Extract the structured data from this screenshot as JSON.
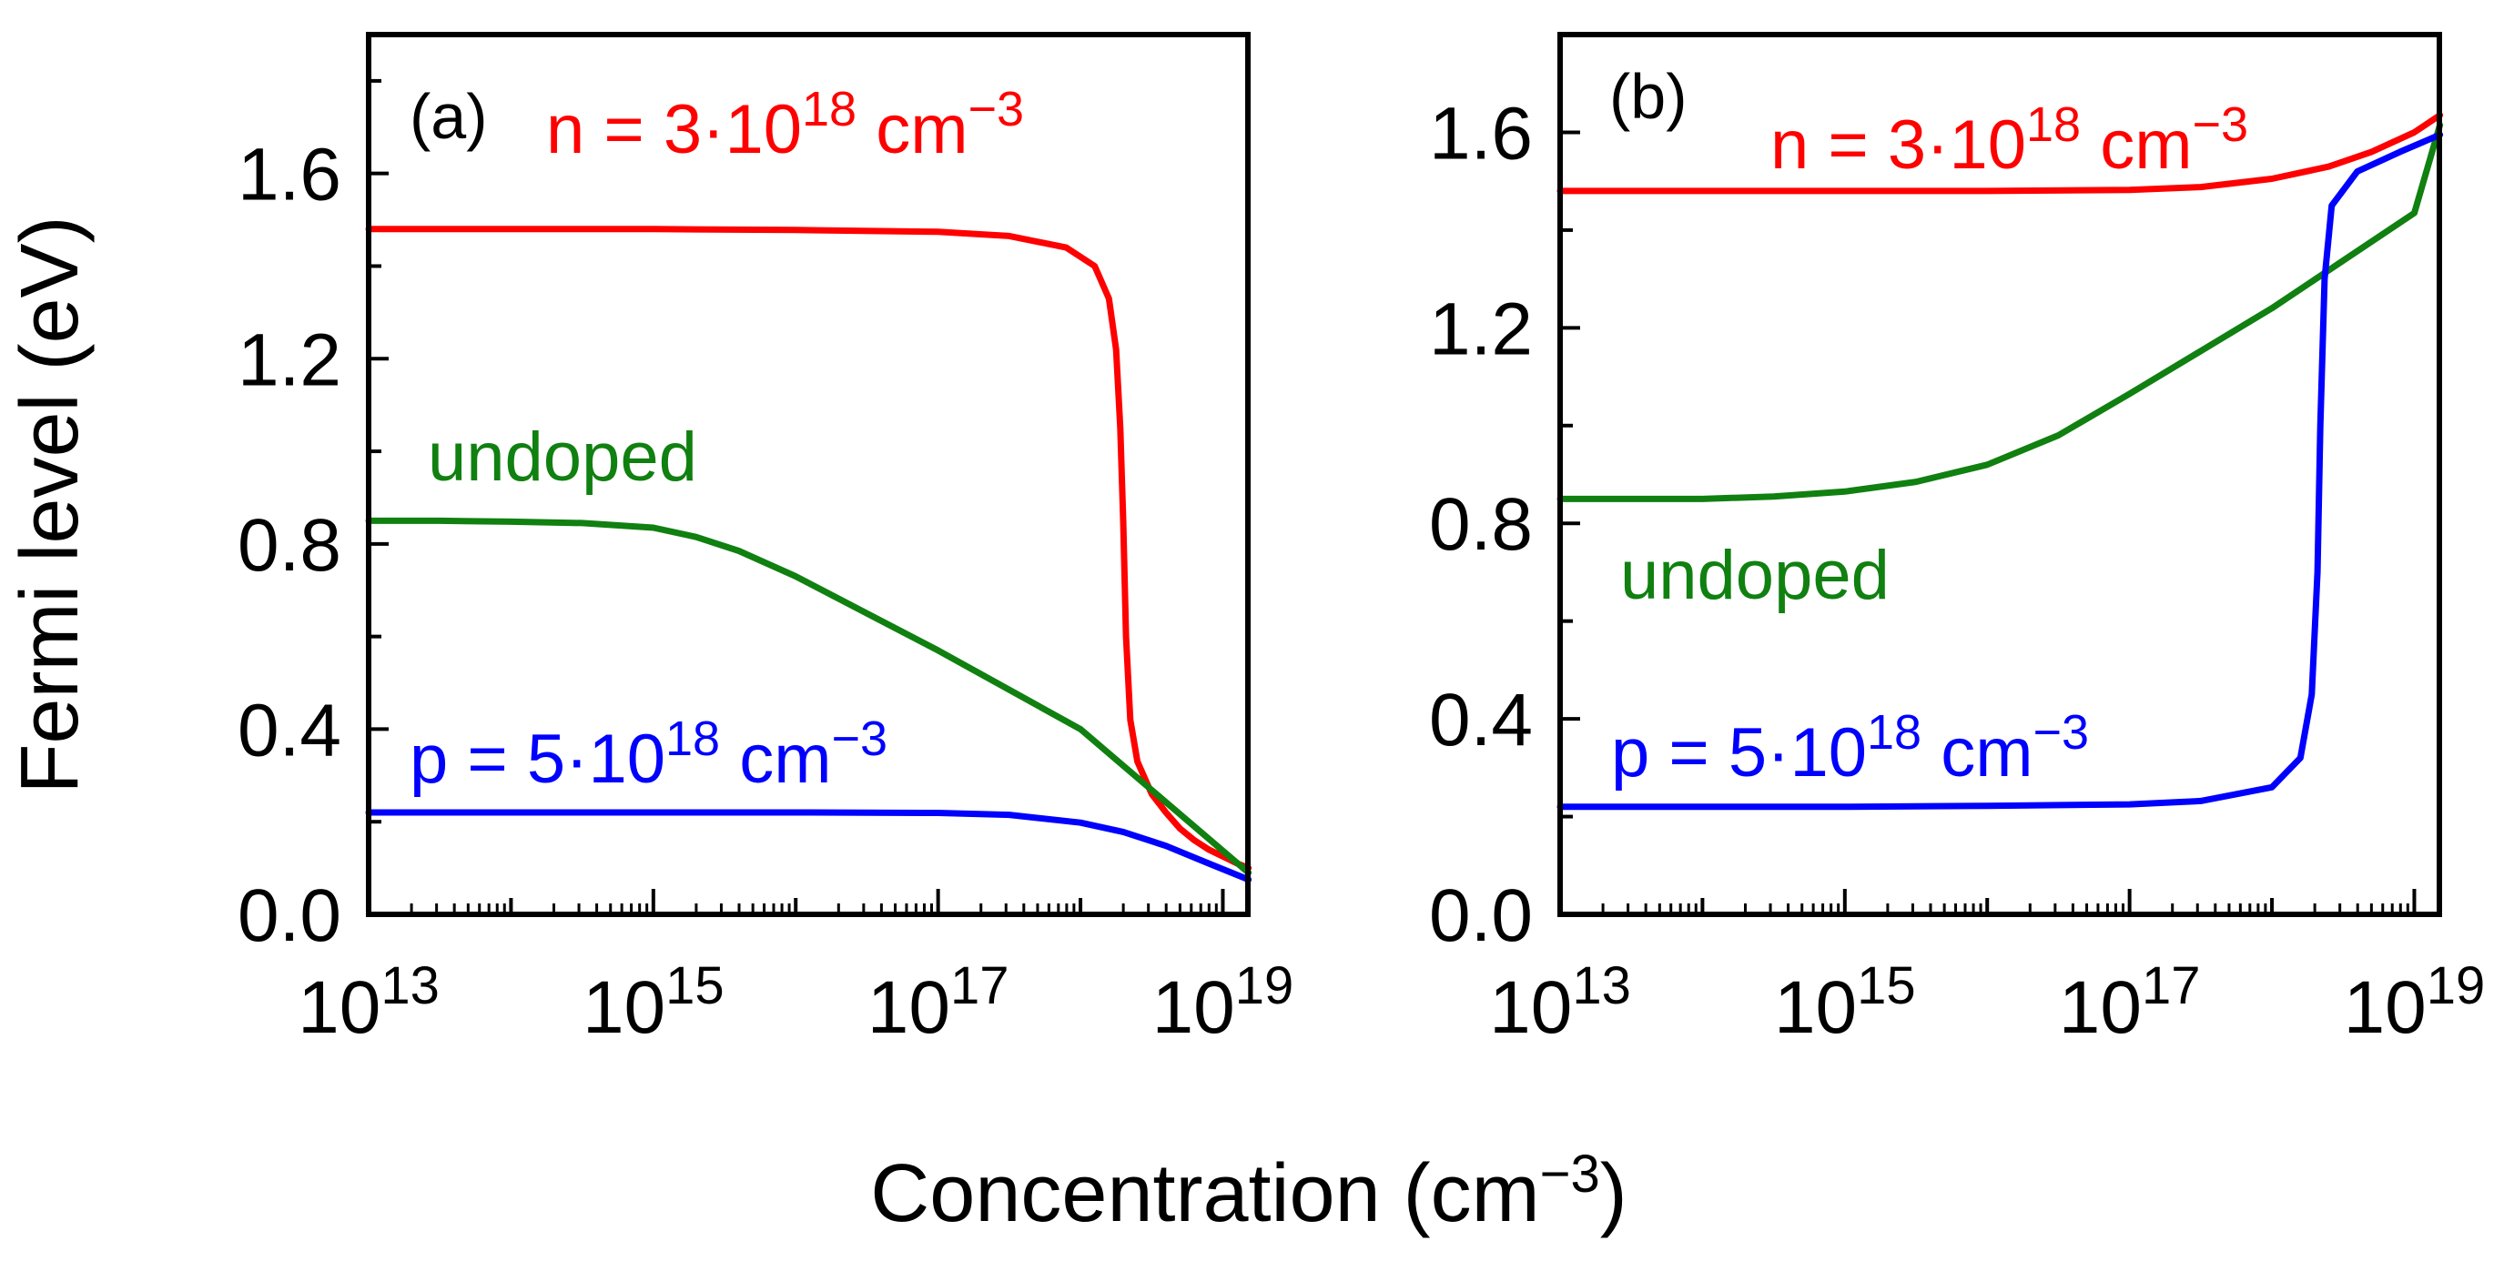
{
  "figure": {
    "ylabel": "Fermi level (eV)",
    "xlabel": "Concentration (cm",
    "xlabel_exp": "−3",
    "xlabel_close": ")"
  },
  "chart_data": [
    {
      "type": "line",
      "panel": "(a)",
      "xscale": "log",
      "xlim": [
        10000000000000.0,
        1.5e+19
      ],
      "ylim": [
        0,
        1.9
      ],
      "xticks": [
        {
          "base": "10",
          "exp": "13"
        },
        {
          "base": "10",
          "exp": "15"
        },
        {
          "base": "10",
          "exp": "17"
        },
        {
          "base": "10",
          "exp": "19"
        }
      ],
      "yticks": [
        "0.0",
        "0.4",
        "0.8",
        "1.2",
        "1.6"
      ],
      "series": [
        {
          "name": "n-doped",
          "color": "#ff0000",
          "label": {
            "pre": "n = 3·10",
            "exp": "18",
            "post": " cm",
            "unit_exp": "−3"
          },
          "points": [
            [
              13,
              1.48
            ],
            [
              14,
              1.48
            ],
            [
              15,
              1.48
            ],
            [
              16,
              1.478
            ],
            [
              17,
              1.474
            ],
            [
              17.5,
              1.465
            ],
            [
              17.9,
              1.44
            ],
            [
              18.1,
              1.4
            ],
            [
              18.2,
              1.33
            ],
            [
              18.25,
              1.22
            ],
            [
              18.28,
              1.05
            ],
            [
              18.3,
              0.85
            ],
            [
              18.32,
              0.6
            ],
            [
              18.35,
              0.42
            ],
            [
              18.4,
              0.33
            ],
            [
              18.5,
              0.26
            ],
            [
              18.6,
              0.22
            ],
            [
              18.7,
              0.185
            ],
            [
              18.8,
              0.16
            ],
            [
              18.9,
              0.14
            ],
            [
              19,
              0.125
            ],
            [
              19.1,
              0.11
            ],
            [
              19.18,
              0.1
            ]
          ]
        },
        {
          "name": "undoped",
          "color": "#108010",
          "label": {
            "pre": "undoped",
            "exp": "",
            "post": "",
            "unit_exp": ""
          },
          "points": [
            [
              13,
              0.85
            ],
            [
              13.5,
              0.85
            ],
            [
              14,
              0.848
            ],
            [
              14.5,
              0.845
            ],
            [
              15,
              0.835
            ],
            [
              15.3,
              0.815
            ],
            [
              15.6,
              0.785
            ],
            [
              16,
              0.73
            ],
            [
              17,
              0.57
            ],
            [
              18,
              0.4
            ],
            [
              19.18,
              0.09
            ]
          ]
        },
        {
          "name": "p-doped",
          "color": "#0000ff",
          "label": {
            "pre": "p = 5·10",
            "exp": "18",
            "post": " cm",
            "unit_exp": "−3"
          },
          "points": [
            [
              13,
              0.22
            ],
            [
              15,
              0.22
            ],
            [
              16,
              0.22
            ],
            [
              17,
              0.219
            ],
            [
              17.5,
              0.215
            ],
            [
              18,
              0.198
            ],
            [
              18.3,
              0.178
            ],
            [
              18.6,
              0.148
            ],
            [
              18.9,
              0.11
            ],
            [
              19.18,
              0.075
            ]
          ]
        }
      ]
    },
    {
      "type": "line",
      "panel": "(b)",
      "xscale": "log",
      "xlim": [
        10000000000000.0,
        1.5e+19
      ],
      "ylim": [
        0,
        1.8
      ],
      "xticks": [
        {
          "base": "10",
          "exp": "13"
        },
        {
          "base": "10",
          "exp": "15"
        },
        {
          "base": "10",
          "exp": "17"
        },
        {
          "base": "10",
          "exp": "19"
        }
      ],
      "yticks": [
        "0.0",
        "0.4",
        "0.8",
        "1.2",
        "1.6"
      ],
      "series": [
        {
          "name": "n-doped",
          "color": "#ff0000",
          "label": {
            "pre": "n = 3·10",
            "exp": "18",
            "post": " cm",
            "unit_exp": "−3"
          },
          "points": [
            [
              13,
              1.48
            ],
            [
              15,
              1.48
            ],
            [
              16,
              1.48
            ],
            [
              17,
              1.482
            ],
            [
              17.5,
              1.488
            ],
            [
              18,
              1.505
            ],
            [
              18.4,
              1.53
            ],
            [
              18.7,
              1.56
            ],
            [
              19,
              1.6
            ],
            [
              19.18,
              1.635
            ]
          ]
        },
        {
          "name": "undoped",
          "color": "#108010",
          "label": {
            "pre": "undoped",
            "exp": "",
            "post": "",
            "unit_exp": ""
          },
          "points": [
            [
              13,
              0.85
            ],
            [
              14,
              0.85
            ],
            [
              14.5,
              0.855
            ],
            [
              15,
              0.865
            ],
            [
              15.5,
              0.885
            ],
            [
              16,
              0.92
            ],
            [
              16.5,
              0.98
            ],
            [
              17,
              1.065
            ],
            [
              18,
              1.24
            ],
            [
              19,
              1.435
            ],
            [
              19.18,
              1.615
            ]
          ]
        },
        {
          "name": "p-doped",
          "color": "#0000ff",
          "label": {
            "pre": "p = 5·10",
            "exp": "18",
            "post": " cm",
            "unit_exp": "−3"
          },
          "points": [
            [
              13,
              0.22
            ],
            [
              15,
              0.22
            ],
            [
              16,
              0.222
            ],
            [
              17,
              0.225
            ],
            [
              17.5,
              0.232
            ],
            [
              18,
              0.26
            ],
            [
              18.2,
              0.32
            ],
            [
              18.28,
              0.45
            ],
            [
              18.32,
              0.7
            ],
            [
              18.34,
              1.0
            ],
            [
              18.37,
              1.3
            ],
            [
              18.42,
              1.45
            ],
            [
              18.6,
              1.52
            ],
            [
              18.9,
              1.56
            ],
            [
              19.18,
              1.595
            ]
          ]
        }
      ]
    }
  ]
}
